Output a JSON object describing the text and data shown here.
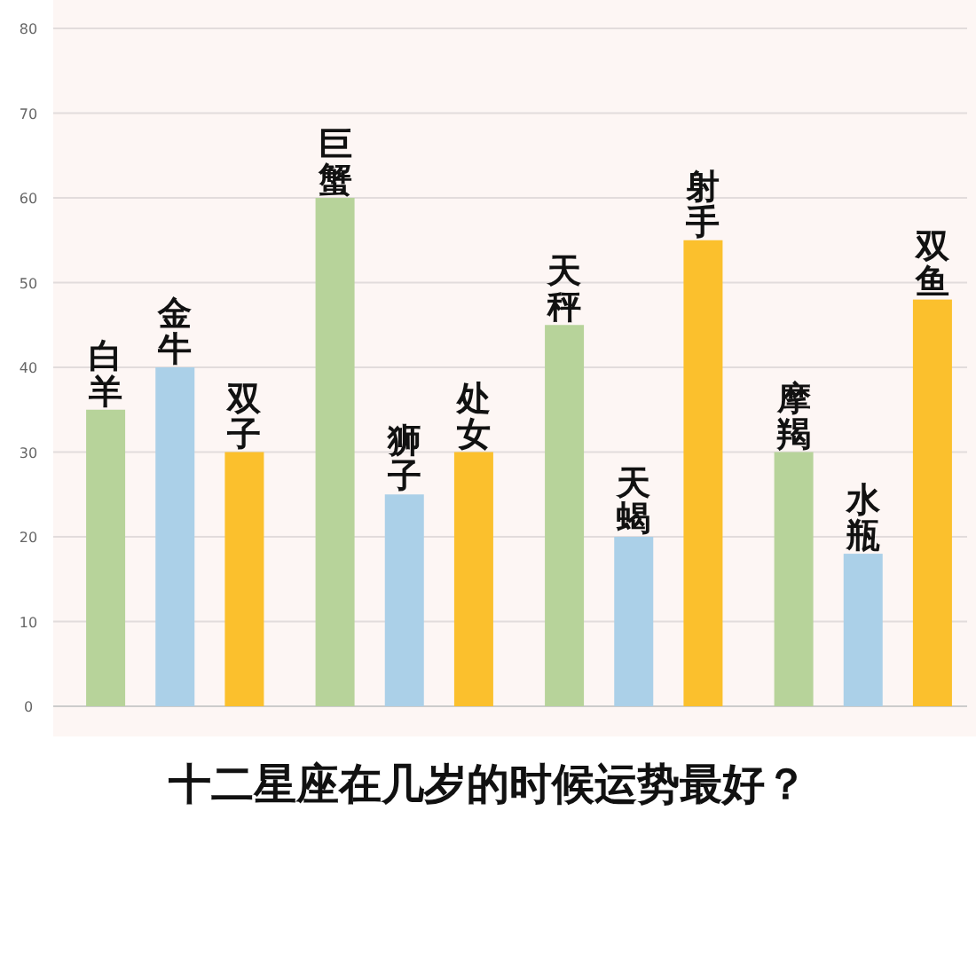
{
  "chart_data": {
    "type": "bar",
    "title": "十二星座在几岁的时候运势最好？",
    "categories": [
      "白羊",
      "金牛",
      "双子",
      "巨蟹",
      "狮子",
      "处女",
      "天秤",
      "天蝎",
      "射手",
      "摩羯",
      "水瓶",
      "双鱼"
    ],
    "values": [
      35,
      40,
      30,
      60,
      25,
      30,
      45,
      20,
      55,
      30,
      18,
      48
    ],
    "colors": [
      "#b7d39a",
      "#abd0e8",
      "#fbc02d",
      "#b7d39a",
      "#abd0e8",
      "#fbc02d",
      "#b7d39a",
      "#abd0e8",
      "#fbc02d",
      "#b7d39a",
      "#abd0e8",
      "#fbc02d"
    ],
    "ylim": [
      0,
      80
    ],
    "yticks": [
      0,
      10,
      20,
      30,
      40,
      50,
      60,
      70,
      80
    ],
    "grid": "y"
  }
}
